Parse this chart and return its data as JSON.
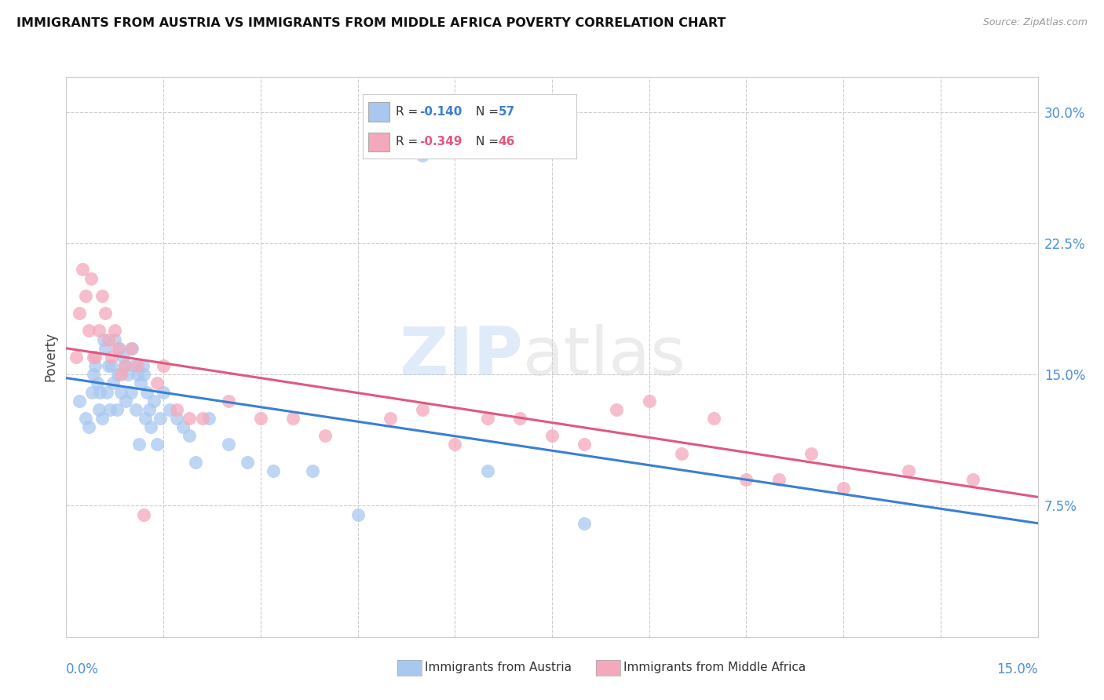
{
  "title": "IMMIGRANTS FROM AUSTRIA VS IMMIGRANTS FROM MIDDLE AFRICA POVERTY CORRELATION CHART",
  "source": "Source: ZipAtlas.com",
  "ylabel": "Poverty",
  "ytick_labels": [
    "7.5%",
    "15.0%",
    "22.5%",
    "30.0%"
  ],
  "ytick_values": [
    7.5,
    15.0,
    22.5,
    30.0
  ],
  "xmin": 0.0,
  "xmax": 15.0,
  "ymin": 0.0,
  "ymax": 32.0,
  "legend1_r": "-0.140",
  "legend1_n": "57",
  "legend2_r": "-0.349",
  "legend2_n": "46",
  "color_austria": "#a8c8f0",
  "color_middle_africa": "#f4a8bc",
  "color_austria_line": "#3a7fd5",
  "color_middle_africa_line": "#e05880",
  "legend_label1": "Immigrants from Austria",
  "legend_label2": "Immigrants from Middle Africa",
  "austria_scatter_x": [
    0.2,
    0.3,
    0.35,
    0.4,
    0.42,
    0.45,
    0.48,
    0.5,
    0.52,
    0.55,
    0.58,
    0.6,
    0.62,
    0.65,
    0.68,
    0.7,
    0.72,
    0.75,
    0.78,
    0.8,
    0.82,
    0.85,
    0.88,
    0.9,
    0.92,
    0.95,
    1.0,
    1.02,
    1.05,
    1.08,
    1.1,
    1.12,
    1.15,
    1.18,
    1.2,
    1.22,
    1.25,
    1.28,
    1.3,
    1.35,
    1.4,
    1.45,
    1.5,
    1.6,
    1.7,
    1.8,
    1.9,
    2.0,
    2.2,
    2.5,
    2.8,
    3.2,
    3.8,
    4.5,
    5.5,
    6.5,
    8.0
  ],
  "austria_scatter_y": [
    13.5,
    12.5,
    12.0,
    14.0,
    15.0,
    15.5,
    14.5,
    13.0,
    14.0,
    12.5,
    17.0,
    16.5,
    14.0,
    15.5,
    13.0,
    15.5,
    14.5,
    17.0,
    13.0,
    15.0,
    16.5,
    14.0,
    16.0,
    15.5,
    13.5,
    15.0,
    14.0,
    16.5,
    15.5,
    13.0,
    15.0,
    11.0,
    14.5,
    15.5,
    15.0,
    12.5,
    14.0,
    13.0,
    12.0,
    13.5,
    11.0,
    12.5,
    14.0,
    13.0,
    12.5,
    12.0,
    11.5,
    10.0,
    12.5,
    11.0,
    10.0,
    9.5,
    9.5,
    7.0,
    27.5,
    9.5,
    6.5
  ],
  "middle_africa_scatter_x": [
    0.15,
    0.2,
    0.25,
    0.3,
    0.35,
    0.38,
    0.42,
    0.45,
    0.5,
    0.55,
    0.6,
    0.65,
    0.7,
    0.75,
    0.8,
    0.85,
    0.9,
    1.0,
    1.1,
    1.2,
    1.4,
    1.5,
    1.7,
    1.9,
    2.1,
    2.5,
    3.0,
    3.5,
    4.0,
    5.0,
    5.5,
    6.0,
    6.5,
    7.0,
    7.5,
    8.0,
    8.5,
    9.0,
    9.5,
    10.0,
    10.5,
    11.0,
    11.5,
    12.0,
    13.0,
    14.0
  ],
  "middle_africa_scatter_y": [
    16.0,
    18.5,
    21.0,
    19.5,
    17.5,
    20.5,
    16.0,
    16.0,
    17.5,
    19.5,
    18.5,
    17.0,
    16.0,
    17.5,
    16.5,
    15.0,
    15.5,
    16.5,
    15.5,
    7.0,
    14.5,
    15.5,
    13.0,
    12.5,
    12.5,
    13.5,
    12.5,
    12.5,
    11.5,
    12.5,
    13.0,
    11.0,
    12.5,
    12.5,
    11.5,
    11.0,
    13.0,
    13.5,
    10.5,
    12.5,
    9.0,
    9.0,
    10.5,
    8.5,
    9.5,
    9.0
  ],
  "austria_trendline_x": [
    0.0,
    15.0
  ],
  "austria_trendline_y": [
    14.8,
    6.5
  ],
  "middle_africa_trendline_x": [
    0.0,
    15.0
  ],
  "middle_africa_trendline_y": [
    16.5,
    8.0
  ],
  "grid_color": "#cccccc",
  "background_color": "#ffffff",
  "title_color": "#111111",
  "axis_label_color": "#4a90d9"
}
